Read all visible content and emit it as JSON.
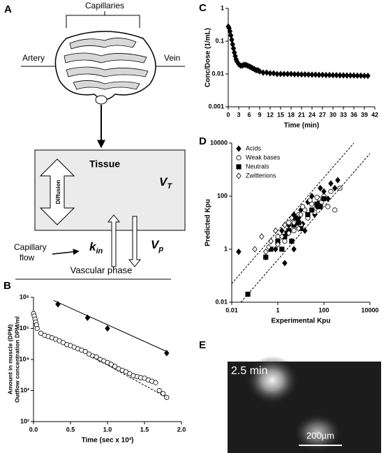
{
  "diagram": {
    "label": "A",
    "capillaries": "Capillaries",
    "artery": "Artery",
    "vein": "Vein",
    "tissue": "Tissue",
    "vt": {
      "symbol": "V",
      "subscript": "T"
    },
    "diffusion": "Diffusion",
    "kin": {
      "symbol": "k",
      "subscript": "in"
    },
    "vp": {
      "symbol": "V",
      "subscript": "p"
    },
    "capillary_flow": [
      "Capillary",
      "flow"
    ],
    "vascular_phase": "Vascular phase"
  },
  "chart_data": [
    {
      "type": "scatter",
      "panel": "B",
      "x_label": "Time (sec x 10³)",
      "y_label": [
        "Amount in muscle (DPM)",
        "Outflow concentration DPM/ml"
      ],
      "xlim": [
        0,
        2
      ],
      "xticks": [
        {
          "value": 0,
          "label": "0.0"
        },
        0.5,
        {
          "value": 1,
          "label": "1.0"
        },
        1.5,
        {
          "value": 2,
          "label": "2.0"
        }
      ],
      "ylim": [
        100,
        1000000
      ],
      "log_y": true,
      "yticks": [
        {
          "value": 100,
          "label": "10²"
        },
        {
          "value": 1000,
          "label": "10³"
        },
        {
          "value": 10000,
          "label": "10⁴"
        },
        {
          "value": 100000,
          "label": "10⁵"
        },
        {
          "value": 1000000,
          "label": "10⁶"
        }
      ],
      "series": [
        {
          "marker": "diamond",
          "filled": true,
          "color": "#000000",
          "x": [
            0.33,
            0.73,
            1.0,
            1.8
          ],
          "values": [
            600000,
            220000,
            100000,
            16000
          ]
        },
        {
          "marker": "circle",
          "filled": false,
          "color": "#000000",
          "x": [
            0,
            0.01,
            0.02,
            0.03,
            0.04,
            0.05,
            0.1,
            0.15,
            0.2,
            0.25,
            0.3,
            0.35,
            0.4,
            0.45,
            0.5,
            0.55,
            0.6,
            0.65,
            0.7,
            0.75,
            0.8,
            0.85,
            0.9,
            0.95,
            1.0,
            1.05,
            1.1,
            1.15,
            1.2,
            1.25,
            1.3,
            1.35,
            1.4,
            1.45,
            1.5,
            1.55,
            1.6,
            1.65,
            1.7,
            1.75,
            1.8
          ],
          "values": [
            300000,
            250000,
            200000,
            160000,
            130000,
            100000,
            70000,
            60000,
            55000,
            50000,
            45000,
            40000,
            35000,
            30000,
            28000,
            25000,
            22000,
            20000,
            18000,
            15000,
            13000,
            12000,
            10000,
            9000,
            8000,
            7000,
            6000,
            5000,
            4500,
            4000,
            3500,
            3000,
            2800,
            2600,
            2500,
            2200,
            2000,
            1800,
            1000,
            800,
            600
          ]
        },
        {
          "line_style": "solid",
          "color": "#000000",
          "x": [
            0.27,
            1.8
          ],
          "values": [
            800000,
            18000
          ]
        },
        {
          "line_style": "dashed",
          "color": "#000000",
          "x": [
            0.8,
            1.8
          ],
          "values": [
            12000,
            600
          ]
        }
      ]
    },
    {
      "type": "scatter",
      "panel": "C",
      "x_label": "Time (min)",
      "y_label": [
        "Conc/Dose (1/mL)"
      ],
      "xlim": [
        0,
        42
      ],
      "xticks": [
        0,
        3,
        6,
        9,
        12,
        15,
        18,
        21,
        24,
        27,
        30,
        33,
        36,
        39,
        42
      ],
      "ylim": [
        0.001,
        1
      ],
      "log_y": true,
      "yticks": [
        0.001,
        0.01,
        0.1,
        1
      ],
      "series": [
        {
          "marker": "diamond",
          "filled": true,
          "connect": true,
          "color": "#000000",
          "x": [
            0,
            0.25,
            0.5,
            0.75,
            1,
            1.25,
            1.5,
            1.75,
            2,
            2.25,
            2.5,
            3,
            3.5,
            4,
            4.5,
            5,
            5.5,
            6,
            6.5,
            7,
            7.5,
            8,
            8.5,
            9,
            10,
            11,
            12,
            13,
            14,
            15,
            16,
            17,
            18,
            19,
            20,
            21,
            22,
            23,
            24,
            25,
            26,
            27,
            28,
            29,
            30,
            31,
            32,
            33,
            34,
            35,
            36,
            37,
            38,
            39,
            40
          ],
          "values": [
            0.28,
            0.25,
            0.2,
            0.15,
            0.11,
            0.08,
            0.06,
            0.045,
            0.035,
            0.028,
            0.024,
            0.02,
            0.018,
            0.018,
            0.019,
            0.019,
            0.018,
            0.017,
            0.016,
            0.015,
            0.014,
            0.013,
            0.013,
            0.012,
            0.011,
            0.011,
            0.0105,
            0.0105,
            0.01,
            0.01,
            0.01,
            0.01,
            0.01,
            0.0098,
            0.0098,
            0.0097,
            0.0097,
            0.0096,
            0.0095,
            0.0095,
            0.0094,
            0.0094,
            0.0093,
            0.0093,
            0.0092,
            0.0092,
            0.0091,
            0.0091,
            0.009,
            0.009,
            0.009,
            0.0089,
            0.0089,
            0.0088,
            0.0088
          ]
        }
      ]
    },
    {
      "type": "scatter",
      "panel": "D",
      "x_label": "Experimental Kpu",
      "y_label": [
        "Predicted Kpu"
      ],
      "xlim": [
        0.01,
        10000
      ],
      "log_x": true,
      "xticks": [
        0.01,
        1,
        100,
        10000
      ],
      "ylim": [
        0.01,
        10000
      ],
      "log_y": true,
      "yticks": [
        0.01,
        1,
        100,
        10000
      ],
      "legend": "top-left",
      "series": [
        {
          "name": "Acids",
          "marker": "diamond",
          "filled": true,
          "color": "#000000",
          "x": [
            0.02,
            0.3,
            0.5,
            0.8,
            1,
            1.5,
            2,
            3,
            4,
            5,
            7,
            10,
            15,
            20,
            30,
            50,
            70,
            100,
            150,
            200,
            300,
            400,
            5,
            8,
            40,
            60,
            2.5,
            12
          ],
          "values": [
            0.8,
            0.5,
            2,
            1,
            3,
            5,
            0.3,
            8,
            2,
            20,
            10,
            30,
            5,
            60,
            100,
            40,
            200,
            150,
            80,
            300,
            200,
            400,
            1,
            15,
            20,
            60,
            4,
            9
          ]
        },
        {
          "name": "Weak bases",
          "marker": "circle",
          "filled": false,
          "color": "#000000",
          "x": [
            0.5,
            1,
            2,
            3,
            5,
            8,
            10,
            15,
            20,
            30,
            40,
            60,
            80,
            100,
            150,
            200,
            300,
            500,
            25,
            6,
            12,
            50
          ],
          "values": [
            1,
            3,
            2,
            10,
            5,
            20,
            8,
            30,
            15,
            50,
            25,
            80,
            60,
            100,
            40,
            150,
            30,
            200,
            70,
            12,
            40,
            90
          ]
        },
        {
          "name": "Neutrals",
          "marker": "square",
          "filled": true,
          "color": "#000000",
          "x": [
            0.05,
            0.3,
            0.5,
            1,
            1.5,
            2,
            3,
            4,
            5,
            8,
            10,
            20,
            30,
            50,
            70,
            100,
            2.5,
            6
          ],
          "values": [
            0.02,
            0.5,
            1,
            2,
            1,
            3,
            5,
            2,
            8,
            10,
            6,
            20,
            30,
            50,
            40,
            80,
            4,
            15
          ]
        },
        {
          "name": "Zwitterions",
          "marker": "diamond",
          "filled": false,
          "color": "#000000",
          "x": [
            0.1,
            0.2,
            0.3,
            0.5,
            0.8,
            1,
            1.5,
            2,
            3,
            5,
            8,
            10,
            0.4,
            4
          ],
          "values": [
            1,
            3,
            0.8,
            2,
            5,
            1.5,
            3,
            8,
            4,
            10,
            6,
            20,
            1.2,
            15
          ]
        },
        {
          "line_style": "dashed",
          "color": "#000000",
          "x": [
            0.01,
            2000
          ],
          "values": [
            0.05,
            10000
          ]
        },
        {
          "line_style": "dashed",
          "color": "#000000",
          "x": [
            0.025,
            10000
          ],
          "values": [
            0.01,
            4000
          ]
        }
      ]
    }
  ],
  "image": {
    "label": "E",
    "time": "2.5 min",
    "scale": "200µm"
  }
}
